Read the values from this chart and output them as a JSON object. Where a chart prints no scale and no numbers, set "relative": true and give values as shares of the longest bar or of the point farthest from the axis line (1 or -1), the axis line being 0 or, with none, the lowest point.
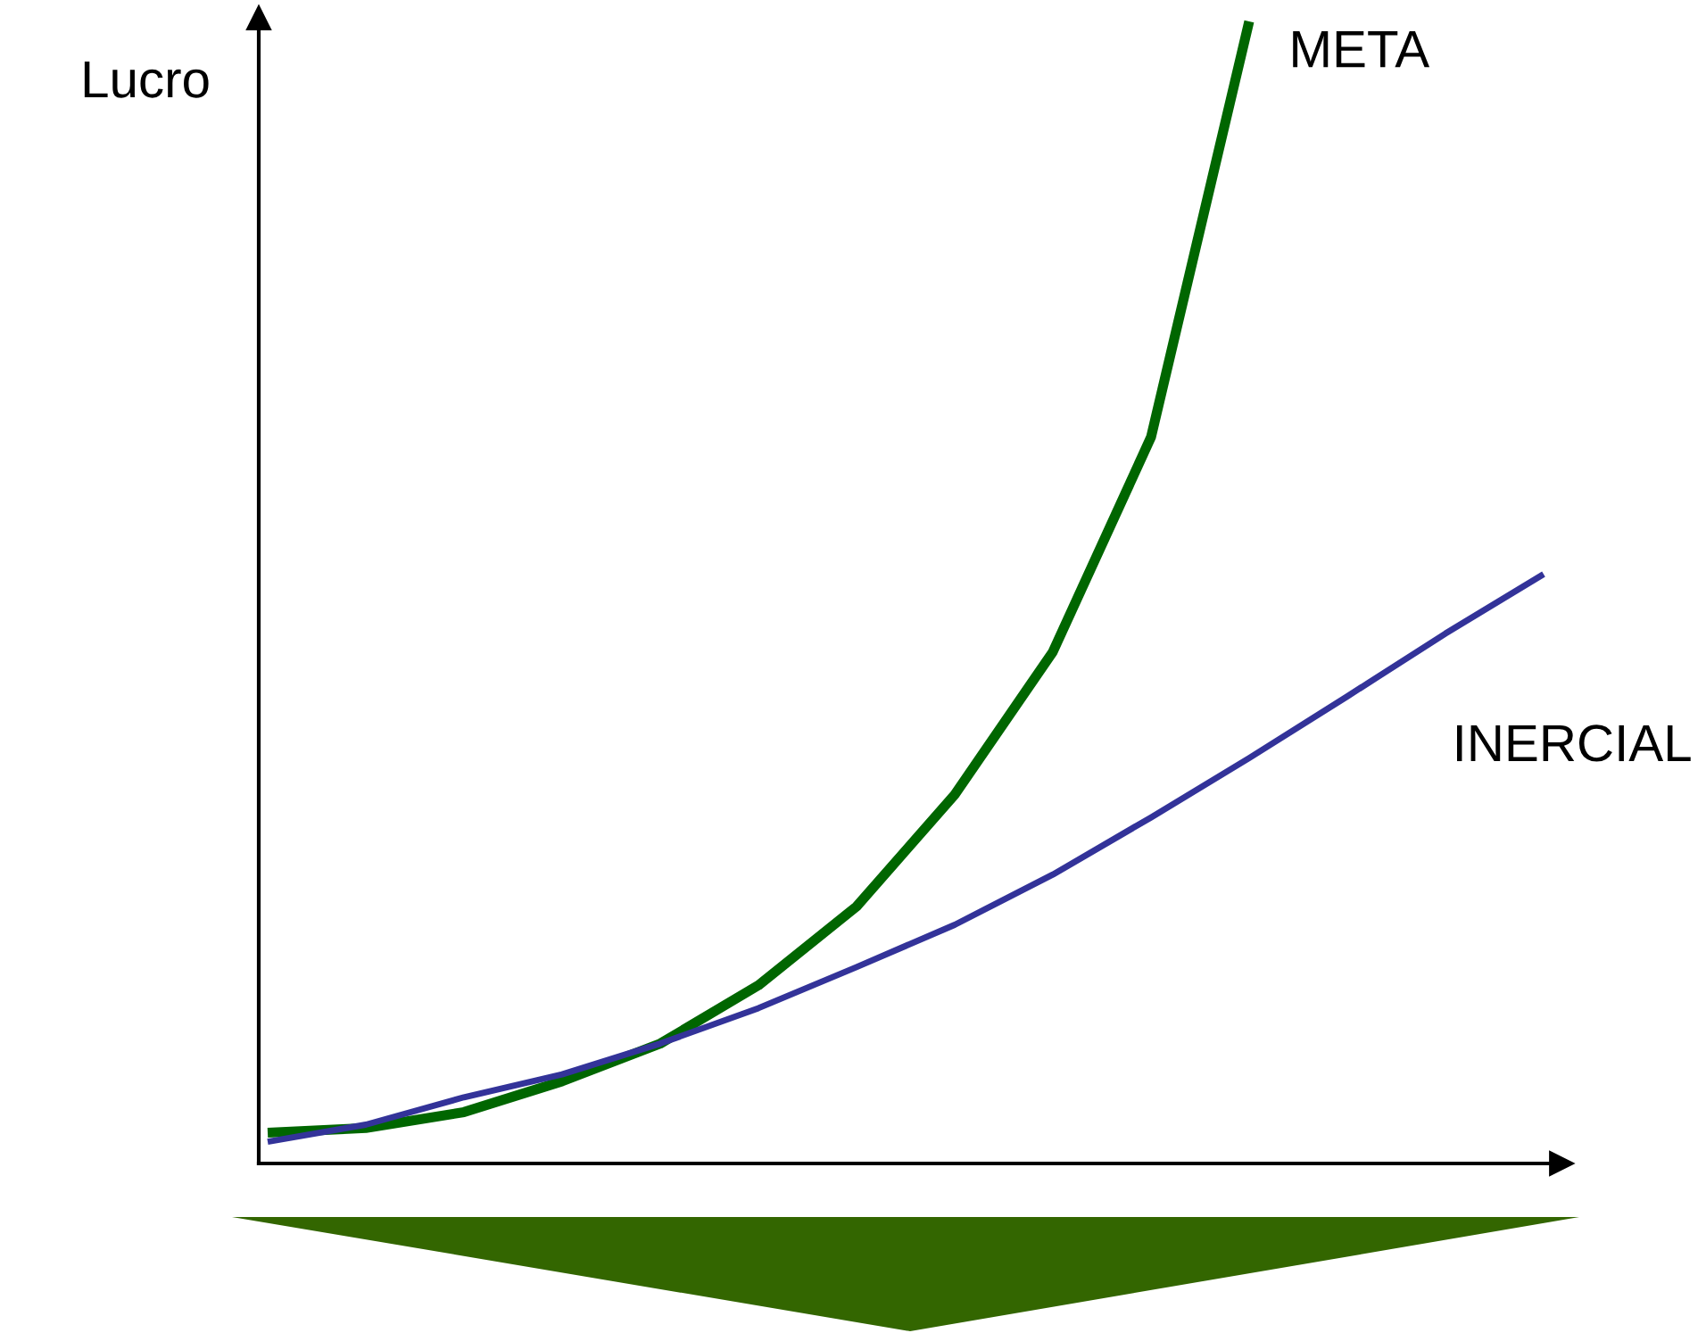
{
  "chart_data": {
    "type": "line",
    "ylabel": "Lucro",
    "relative": true,
    "categories": [
      null,
      null,
      null,
      null,
      null,
      null,
      null,
      null,
      null,
      null,
      null,
      null,
      null,
      null
    ],
    "series": [
      {
        "name": "META",
        "color": "#006600",
        "values": [
          0.027,
          0.031,
          0.045,
          0.072,
          0.105,
          0.156,
          0.225,
          0.323,
          0.448,
          0.636,
          1,
          null,
          null,
          null
        ]
      },
      {
        "name": "INERCIAL",
        "color": "#333399",
        "values": [
          0.019,
          0.034,
          0.058,
          0.078,
          0.105,
          0.136,
          0.172,
          0.209,
          0.253,
          0.303,
          0.355,
          0.409,
          0.464,
          0.516
        ]
      }
    ]
  }
}
